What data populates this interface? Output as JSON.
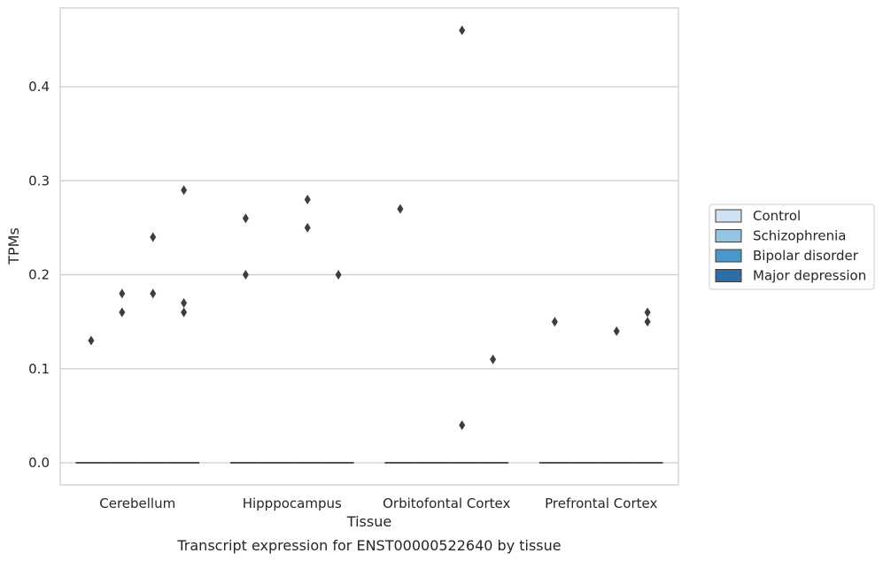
{
  "chart_data": {
    "type": "box",
    "xlabel": "Tissue",
    "ylabel": "TPMs",
    "caption": "Transcript expression for ENST00000522640 by tissue",
    "categories": [
      "Cerebellum",
      "Hipppocampus",
      "Orbitofontal Cortex",
      "Prefrontal Cortex"
    ],
    "y_ticks": [
      "0.0",
      "0.1",
      "0.2",
      "0.3",
      "0.4"
    ],
    "ylim": [
      -0.023,
      0.485
    ],
    "grid": "horizontal",
    "legend_position": "right",
    "series": [
      {
        "name": "Control",
        "color": "#d0e1f2",
        "median": [
          0,
          0,
          0,
          0
        ],
        "outliers": [
          [
            0.13
          ],
          [
            0.26,
            0.2
          ],
          [
            0.27
          ],
          [
            0.15
          ]
        ]
      },
      {
        "name": "Schizophrenia",
        "color": "#94c4df",
        "median": [
          0,
          0,
          0,
          0
        ],
        "outliers": [
          [
            0.16,
            0.18
          ],
          [],
          [],
          []
        ]
      },
      {
        "name": "Bipolar disorder",
        "color": "#4a98c9",
        "median": [
          0,
          0,
          0,
          0
        ],
        "outliers": [
          [
            0.24,
            0.18
          ],
          [
            0.28,
            0.25
          ],
          [
            0.46,
            0.04
          ],
          [
            0.14
          ]
        ]
      },
      {
        "name": "Major depression",
        "color": "#2e6ca8",
        "median": [
          0,
          0,
          0,
          0
        ],
        "outliers": [
          [
            0.29,
            0.17,
            0.16
          ],
          [
            0.2
          ],
          [
            0.11
          ],
          [
            0.16,
            0.15
          ]
        ]
      }
    ]
  }
}
